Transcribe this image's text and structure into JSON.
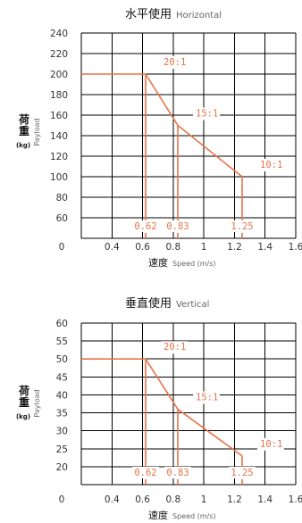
{
  "chart_data": [
    {
      "type": "line",
      "title": "水平使用",
      "subtitle": "Horizontal",
      "ylabel": "荷重",
      "ylabel_unit": "(kg)",
      "ylabel_sub": "Payload",
      "xlabel": "速度",
      "xlabel_sub": "Speed (m/s)",
      "ylim": [
        40,
        240
      ],
      "yticks": [
        60,
        80,
        100,
        120,
        140,
        160,
        180,
        200,
        220,
        240
      ],
      "y_origin_label": "0",
      "xlim": [
        0.2,
        1.6
      ],
      "xticks": [
        "0.4",
        "0.6",
        "0.8",
        "1",
        "1.2",
        "1.4",
        "1.6"
      ],
      "x_origin_label": "0",
      "grid": true,
      "series": [
        {
          "name": "payload-limit",
          "points": [
            [
              0.2,
              200
            ],
            [
              0.62,
              200
            ],
            [
              0.83,
              150
            ],
            [
              1.25,
              100
            ]
          ]
        }
      ],
      "ratios": [
        {
          "label": "20:1",
          "x": 0.62,
          "y": 200
        },
        {
          "label": "15:1",
          "x": 0.83,
          "y": 150
        },
        {
          "label": "10:1",
          "x": 1.25,
          "y": 100
        }
      ],
      "speed_markers": [
        {
          "label": "0.62",
          "x": 0.62,
          "y": 200
        },
        {
          "label": "0.83",
          "x": 0.83,
          "y": 150
        },
        {
          "label": "1.25",
          "x": 1.25,
          "y": 100
        }
      ],
      "line_color": "#e8734a"
    },
    {
      "type": "line",
      "title": "垂直使用",
      "subtitle": "Vertical",
      "ylabel": "荷重",
      "ylabel_unit": "(kg)",
      "ylabel_sub": "Payload",
      "xlabel": "速度",
      "xlabel_sub": "Speed (m/s)",
      "ylim": [
        15,
        60
      ],
      "yticks": [
        20,
        25,
        30,
        35,
        40,
        45,
        50,
        55,
        60
      ],
      "y_origin_label": "0",
      "xlim": [
        0.2,
        1.6
      ],
      "xticks": [
        "0.4",
        "0.6",
        "0.8",
        "1",
        "1.2",
        "1.4",
        "1.6"
      ],
      "x_origin_label": "0",
      "grid": true,
      "series": [
        {
          "name": "payload-limit",
          "points": [
            [
              0.2,
              50
            ],
            [
              0.62,
              50
            ],
            [
              0.83,
              36
            ],
            [
              1.25,
              23
            ]
          ]
        }
      ],
      "ratios": [
        {
          "label": "20:1",
          "x": 0.62,
          "y": 50
        },
        {
          "label": "15:1",
          "x": 0.83,
          "y": 36
        },
        {
          "label": "10:1",
          "x": 1.25,
          "y": 23
        }
      ],
      "speed_markers": [
        {
          "label": "0.62",
          "x": 0.62,
          "y": 50
        },
        {
          "label": "0.83",
          "x": 0.83,
          "y": 36
        },
        {
          "label": "1.25",
          "x": 1.25,
          "y": 23
        }
      ],
      "line_color": "#e8734a"
    }
  ]
}
